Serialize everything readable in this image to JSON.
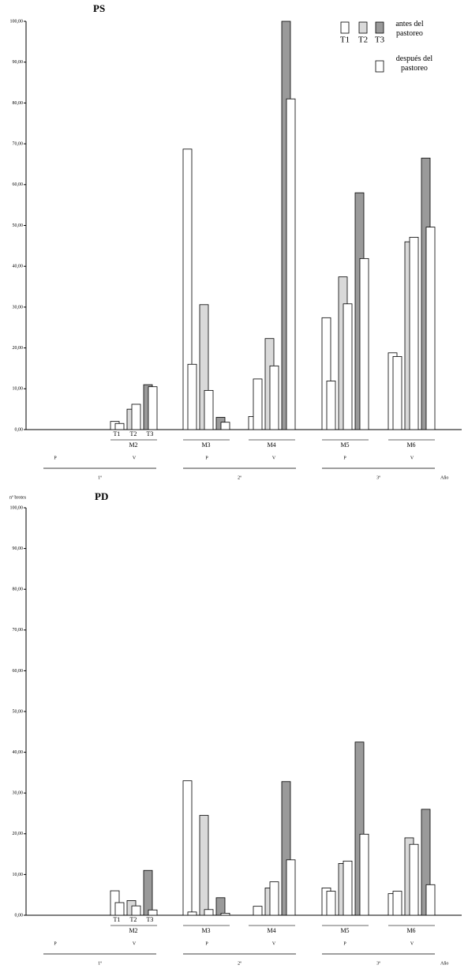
{
  "chart_data": [
    {
      "type": "bar",
      "title": "PS",
      "categories": [
        "M2",
        "M3",
        "M4",
        "M5",
        "M6"
      ],
      "series": [
        {
          "name": "T1",
          "color": "#ffffff",
          "before": [
            2,
            68.7,
            3.2,
            27.4,
            18.8
          ],
          "after": [
            1.5,
            16,
            12.4,
            11.9,
            17.9
          ]
        },
        {
          "name": "T2",
          "color": "#d9d9d9",
          "before": [
            5,
            30.6,
            22.3,
            37.4,
            46
          ],
          "after": [
            6.2,
            9.6,
            15.6,
            30.8,
            47.1
          ]
        },
        {
          "name": "T3",
          "color": "#9a9a9a",
          "before": [
            11,
            3,
            100,
            58,
            66.5
          ],
          "after": [
            10.5,
            1.8,
            81,
            41.9,
            49.6
          ]
        }
      ],
      "after_color": "#ffffff",
      "legend": {
        "before": "antes del pastoreo",
        "after": "después del pastoreo"
      },
      "seasons": [
        "P",
        "V",
        "P",
        "V",
        "P",
        "V"
      ],
      "years": [
        "1º",
        "2º",
        "3º"
      ],
      "year_axis_label": "Año",
      "ylim": [
        0,
        100
      ],
      "yticks": [
        {
          "value": 0,
          "label": "0,00"
        },
        {
          "value": 10,
          "label": "10,00"
        },
        {
          "value": 20,
          "label": "20,00"
        },
        {
          "value": 30,
          "label": "30,00"
        },
        {
          "value": 40,
          "label": "40,00"
        },
        {
          "value": 50,
          "label": "50,00"
        },
        {
          "value": 60,
          "label": "60,00"
        },
        {
          "value": 70,
          "label": "70,00"
        },
        {
          "value": 80,
          "label": "80,00"
        },
        {
          "value": 90,
          "label": "90,00"
        },
        {
          "value": 100,
          "label": "100,00"
        }
      ]
    },
    {
      "type": "bar",
      "title": "PD",
      "y_label": "nº brotes",
      "categories": [
        "M2",
        "M3",
        "M4",
        "M5",
        "M6"
      ],
      "series": [
        {
          "name": "T1",
          "color": "#ffffff",
          "before": [
            6,
            33,
            0,
            6.7,
            5.3
          ],
          "after": [
            3.1,
            0.8,
            2.2,
            5.9,
            5.9
          ]
        },
        {
          "name": "T2",
          "color": "#d9d9d9",
          "before": [
            3.6,
            24.5,
            6.7,
            12.7,
            19
          ],
          "after": [
            2.3,
            1.4,
            8.2,
            13.3,
            17.4
          ]
        },
        {
          "name": "T3",
          "color": "#9a9a9a",
          "before": [
            11,
            4.3,
            32.8,
            42.5,
            26
          ],
          "after": [
            1.3,
            0.5,
            13.6,
            19.9,
            7.5
          ]
        }
      ],
      "after_color": "#ffffff",
      "seasons": [
        "P",
        "V",
        "P",
        "V",
        "P",
        "V"
      ],
      "years": [
        "1º",
        "2º",
        "3º"
      ],
      "year_axis_label": "Año",
      "ylim": [
        0,
        100
      ],
      "yticks": [
        {
          "value": 0,
          "label": "0,00"
        },
        {
          "value": 10,
          "label": "10,00"
        },
        {
          "value": 20,
          "label": "20,00"
        },
        {
          "value": 30,
          "label": "30,00"
        },
        {
          "value": 40,
          "label": "40,00"
        },
        {
          "value": 50,
          "label": "50,00"
        },
        {
          "value": 60,
          "label": "60,00"
        },
        {
          "value": 70,
          "label": "70,00"
        },
        {
          "value": 80,
          "label": "80,00"
        },
        {
          "value": 90,
          "label": "90,00"
        },
        {
          "value": 100,
          "label": "100,00"
        }
      ]
    }
  ]
}
